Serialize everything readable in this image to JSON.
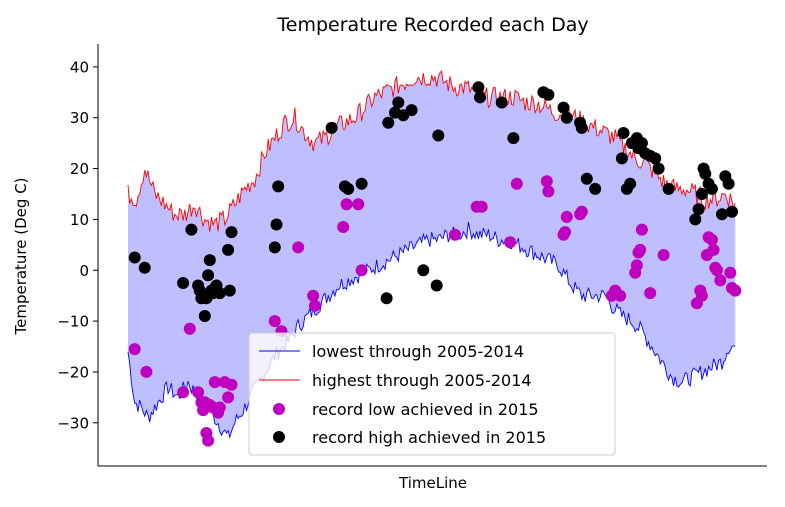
{
  "chart_data": {
    "type": "line",
    "title": "Temperature Recorded each Day",
    "xlabel": "TimeLine",
    "ylabel": "Temperature (Deg C)",
    "ylim": [
      -38.5,
      44.5
    ],
    "xlim": [
      -18,
      383
    ],
    "yticks": [
      -30,
      -20,
      -10,
      0,
      10,
      20,
      30,
      40
    ],
    "ytick_labels": [
      "−30",
      "−20",
      "−10",
      "0",
      "10",
      "20",
      "30",
      "40"
    ],
    "grid": false,
    "legend_position": "lower-center",
    "fill_color": "#bfbfff",
    "series": [
      {
        "name": "lowest through 2005-2014",
        "color": "#0000ff",
        "anchors": [
          [
            0,
            -16
          ],
          [
            4,
            -26
          ],
          [
            8,
            -27
          ],
          [
            12,
            -29
          ],
          [
            18,
            -26
          ],
          [
            24,
            -23
          ],
          [
            30,
            -25
          ],
          [
            36,
            -22
          ],
          [
            42,
            -25
          ],
          [
            48,
            -27
          ],
          [
            54,
            -30
          ],
          [
            60,
            -33
          ],
          [
            64,
            -30
          ],
          [
            70,
            -27
          ],
          [
            75,
            -24
          ],
          [
            82,
            -20
          ],
          [
            90,
            -16
          ],
          [
            96,
            -14
          ],
          [
            102,
            -11
          ],
          [
            108,
            -9
          ],
          [
            114,
            -7
          ],
          [
            120,
            -5
          ],
          [
            126,
            -3
          ],
          [
            132,
            -2
          ],
          [
            138,
            -1
          ],
          [
            144,
            0
          ],
          [
            150,
            1
          ],
          [
            156,
            2
          ],
          [
            162,
            3
          ],
          [
            168,
            4
          ],
          [
            174,
            5
          ],
          [
            180,
            6
          ],
          [
            186,
            6
          ],
          [
            192,
            7
          ],
          [
            198,
            7
          ],
          [
            204,
            8
          ],
          [
            210,
            7
          ],
          [
            216,
            7
          ],
          [
            222,
            6
          ],
          [
            228,
            6
          ],
          [
            234,
            5
          ],
          [
            240,
            4
          ],
          [
            246,
            3
          ],
          [
            252,
            2
          ],
          [
            258,
            1
          ],
          [
            262,
            -1
          ],
          [
            266,
            -3
          ],
          [
            272,
            -5
          ],
          [
            276,
            -5
          ],
          [
            282,
            -5
          ],
          [
            286,
            -5
          ],
          [
            290,
            -7
          ],
          [
            296,
            -9
          ],
          [
            302,
            -10
          ],
          [
            308,
            -12
          ],
          [
            314,
            -15
          ],
          [
            320,
            -18
          ],
          [
            326,
            -21
          ],
          [
            332,
            -22
          ],
          [
            338,
            -21
          ],
          [
            344,
            -20
          ],
          [
            350,
            -19
          ],
          [
            356,
            -18
          ],
          [
            360,
            -15
          ],
          [
            364,
            -15
          ]
        ]
      },
      {
        "name": "highest through 2005-2014",
        "color": "#ff0000",
        "anchors": [
          [
            0,
            15
          ],
          [
            5,
            14
          ],
          [
            10,
            20
          ],
          [
            16,
            15
          ],
          [
            22,
            13
          ],
          [
            28,
            11
          ],
          [
            34,
            11
          ],
          [
            40,
            13
          ],
          [
            46,
            10
          ],
          [
            52,
            9
          ],
          [
            58,
            10
          ],
          [
            64,
            13
          ],
          [
            70,
            16
          ],
          [
            76,
            18
          ],
          [
            82,
            23
          ],
          [
            88,
            26
          ],
          [
            94,
            29
          ],
          [
            100,
            30
          ],
          [
            106,
            27
          ],
          [
            112,
            25
          ],
          [
            118,
            26
          ],
          [
            124,
            28
          ],
          [
            130,
            29
          ],
          [
            136,
            30
          ],
          [
            142,
            32
          ],
          [
            148,
            34
          ],
          [
            154,
            35
          ],
          [
            160,
            36
          ],
          [
            166,
            37
          ],
          [
            172,
            38
          ],
          [
            178,
            38
          ],
          [
            184,
            38
          ],
          [
            190,
            37
          ],
          [
            196,
            36
          ],
          [
            202,
            36
          ],
          [
            208,
            35
          ],
          [
            214,
            34
          ],
          [
            220,
            34
          ],
          [
            226,
            34
          ],
          [
            232,
            34
          ],
          [
            238,
            33
          ],
          [
            244,
            33
          ],
          [
            250,
            32
          ],
          [
            256,
            31
          ],
          [
            262,
            31
          ],
          [
            268,
            30
          ],
          [
            274,
            29
          ],
          [
            280,
            28
          ],
          [
            286,
            27
          ],
          [
            292,
            26
          ],
          [
            298,
            24
          ],
          [
            304,
            22
          ],
          [
            310,
            21
          ],
          [
            316,
            19
          ],
          [
            322,
            17
          ],
          [
            328,
            16
          ],
          [
            334,
            16
          ],
          [
            340,
            15
          ],
          [
            346,
            14
          ],
          [
            352,
            14
          ],
          [
            358,
            15
          ],
          [
            364,
            13
          ]
        ]
      },
      {
        "name": "record low achieved in 2015",
        "type": "scatter",
        "color": "#bf00bf",
        "points": [
          [
            4,
            -15.5
          ],
          [
            11,
            -20
          ],
          [
            33,
            -24
          ],
          [
            37,
            -11.5
          ],
          [
            42,
            -24
          ],
          [
            44,
            -26
          ],
          [
            45,
            -27.5
          ],
          [
            46,
            -26
          ],
          [
            47,
            -32
          ],
          [
            48,
            -33.5
          ],
          [
            49,
            -26.5
          ],
          [
            51,
            -27
          ],
          [
            52,
            -22
          ],
          [
            54,
            -28
          ],
          [
            55,
            -27
          ],
          [
            58,
            -22
          ],
          [
            60,
            -25
          ],
          [
            62,
            -22.5
          ],
          [
            88,
            -10
          ],
          [
            92,
            -12
          ],
          [
            102,
            4.5
          ],
          [
            111,
            -5
          ],
          [
            112,
            -7
          ],
          [
            129,
            8.5
          ],
          [
            131,
            13
          ],
          [
            138,
            13
          ],
          [
            140,
            0
          ],
          [
            196,
            7
          ],
          [
            209,
            12.5
          ],
          [
            212,
            12.5
          ],
          [
            229,
            5.5
          ],
          [
            233,
            17
          ],
          [
            251,
            17.5
          ],
          [
            252,
            15.5
          ],
          [
            261,
            7
          ],
          [
            262,
            7.5
          ],
          [
            263,
            10.5
          ],
          [
            271,
            11
          ],
          [
            272,
            11.5
          ],
          [
            290,
            -5
          ],
          [
            292,
            -4
          ],
          [
            295,
            -5
          ],
          [
            304,
            -0.5
          ],
          [
            305,
            1
          ],
          [
            306,
            3.5
          ],
          [
            307,
            4
          ],
          [
            308,
            8
          ],
          [
            313,
            -4.5
          ],
          [
            321,
            3
          ],
          [
            341,
            -6.5
          ],
          [
            343,
            -4
          ],
          [
            344,
            -5
          ],
          [
            347,
            3
          ],
          [
            348,
            6.5
          ],
          [
            350,
            6
          ],
          [
            351,
            4
          ],
          [
            352,
            0.5
          ],
          [
            353,
            0
          ],
          [
            355,
            -2
          ],
          [
            361,
            -0.5
          ],
          [
            362,
            -3.5
          ],
          [
            364,
            -4
          ]
        ]
      },
      {
        "name": "record high achieved in 2015",
        "type": "scatter",
        "color": "#000000",
        "points": [
          [
            4,
            2.5
          ],
          [
            10,
            0.5
          ],
          [
            33,
            -2.5
          ],
          [
            38,
            8
          ],
          [
            42,
            -3
          ],
          [
            43,
            -4
          ],
          [
            44,
            -5.5
          ],
          [
            45,
            -5
          ],
          [
            46,
            -9
          ],
          [
            47,
            -5.5
          ],
          [
            48,
            -1
          ],
          [
            49,
            2
          ],
          [
            50,
            -4
          ],
          [
            51,
            -4.5
          ],
          [
            52,
            -3.5
          ],
          [
            53,
            -3
          ],
          [
            55,
            -4.5
          ],
          [
            60,
            4
          ],
          [
            61,
            -4
          ],
          [
            62,
            7.5
          ],
          [
            88,
            4.5
          ],
          [
            89,
            9
          ],
          [
            90,
            16.5
          ],
          [
            122,
            28
          ],
          [
            130,
            16.5
          ],
          [
            132,
            16
          ],
          [
            140,
            17
          ],
          [
            155,
            -5.5
          ],
          [
            156,
            29
          ],
          [
            160,
            31
          ],
          [
            162,
            33
          ],
          [
            165,
            30.5
          ],
          [
            170,
            31.5
          ],
          [
            177,
            0
          ],
          [
            185,
            -3
          ],
          [
            186,
            26.5
          ],
          [
            210,
            36
          ],
          [
            211,
            34
          ],
          [
            224,
            33
          ],
          [
            231,
            26
          ],
          [
            249,
            35
          ],
          [
            252,
            34.5
          ],
          [
            261,
            32
          ],
          [
            263,
            30
          ],
          [
            271,
            29
          ],
          [
            272,
            28
          ],
          [
            275,
            18
          ],
          [
            280,
            16
          ],
          [
            296,
            22
          ],
          [
            297,
            27
          ],
          [
            299,
            16
          ],
          [
            301,
            17
          ],
          [
            302,
            25
          ],
          [
            305,
            26
          ],
          [
            306,
            24
          ],
          [
            308,
            25
          ],
          [
            310,
            23
          ],
          [
            313,
            22.5
          ],
          [
            316,
            22
          ],
          [
            318,
            20
          ],
          [
            324,
            16
          ],
          [
            340,
            10
          ],
          [
            342,
            12
          ],
          [
            344,
            15
          ],
          [
            345,
            20
          ],
          [
            346,
            19
          ],
          [
            348,
            17
          ],
          [
            350,
            16
          ],
          [
            356,
            11
          ],
          [
            358,
            18.5
          ],
          [
            360,
            17
          ],
          [
            362,
            11.5
          ]
        ]
      }
    ]
  }
}
